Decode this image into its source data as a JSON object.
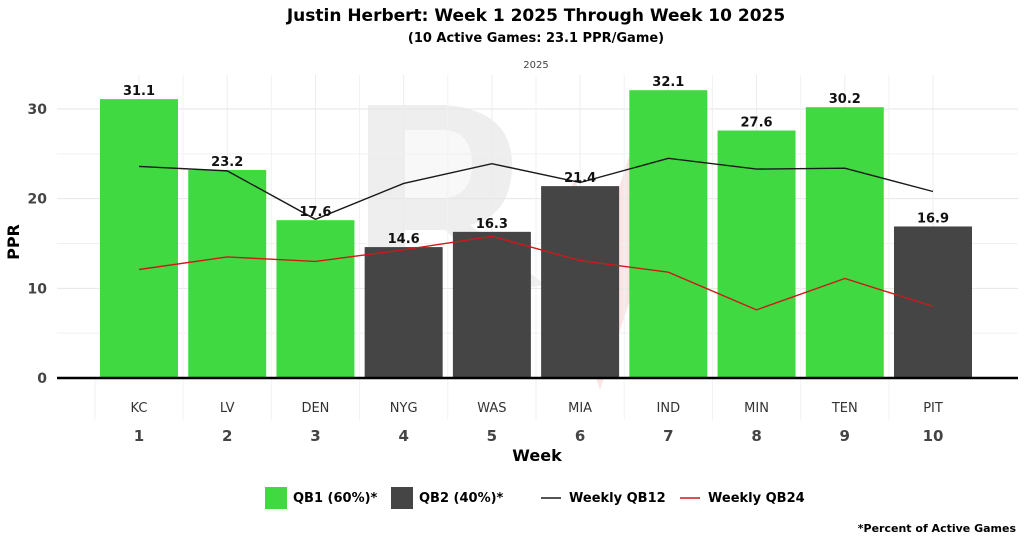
{
  "chart_data": {
    "type": "bar",
    "title": "Justin Herbert: Week 1 2025 Through Week 10 2025",
    "subtitle": "(10 Active Games: 23.1 PPR/Game)",
    "facet_label": "2025",
    "xlabel": "Week",
    "ylabel": "PPR",
    "ylim": [
      0,
      34
    ],
    "yticks": [
      0,
      10,
      20,
      30
    ],
    "grid": true,
    "legend_position": "bottom",
    "weeks": [
      "1",
      "2",
      "3",
      "4",
      "5",
      "6",
      "7",
      "8",
      "9",
      "10"
    ],
    "opponents": [
      "KC",
      "LV",
      "DEN",
      "NYG",
      "WAS",
      "MIA",
      "IND",
      "MIN",
      "TEN",
      "PIT"
    ],
    "values": [
      31.1,
      23.2,
      17.6,
      14.6,
      16.3,
      21.4,
      32.1,
      27.6,
      30.2,
      16.9
    ],
    "value_labels": [
      "31.1",
      "23.2",
      "17.6",
      "14.6",
      "16.3",
      "21.4",
      "32.1",
      "27.6",
      "30.2",
      "16.9"
    ],
    "tiers": [
      "QB1",
      "QB1",
      "QB1",
      "QB2",
      "QB2",
      "QB2",
      "QB1",
      "QB1",
      "QB1",
      "QB2"
    ],
    "tier_colors": {
      "QB1": "#41d941",
      "QB2": "#454545"
    },
    "lines": [
      {
        "name": "Weekly QB12",
        "color": "#1a1a1a",
        "values": [
          23.6,
          23.1,
          17.7,
          21.7,
          23.9,
          21.8,
          24.5,
          23.3,
          23.4,
          20.8
        ]
      },
      {
        "name": "Weekly QB24",
        "color": "#cc1a1a",
        "values": [
          12.1,
          13.5,
          13.0,
          14.3,
          15.8,
          13.1,
          11.8,
          7.6,
          11.1,
          8.0
        ]
      }
    ],
    "legend": [
      {
        "label": "QB1 (60%)*",
        "kind": "box",
        "color": "#41d941"
      },
      {
        "label": "QB2 (40%)*",
        "kind": "box",
        "color": "#454545"
      },
      {
        "label": "Weekly QB12",
        "kind": "line",
        "color": "#1a1a1a"
      },
      {
        "label": "Weekly QB24",
        "kind": "line",
        "color": "#cc1a1a"
      }
    ],
    "footnote": "*Percent of Active Games"
  }
}
